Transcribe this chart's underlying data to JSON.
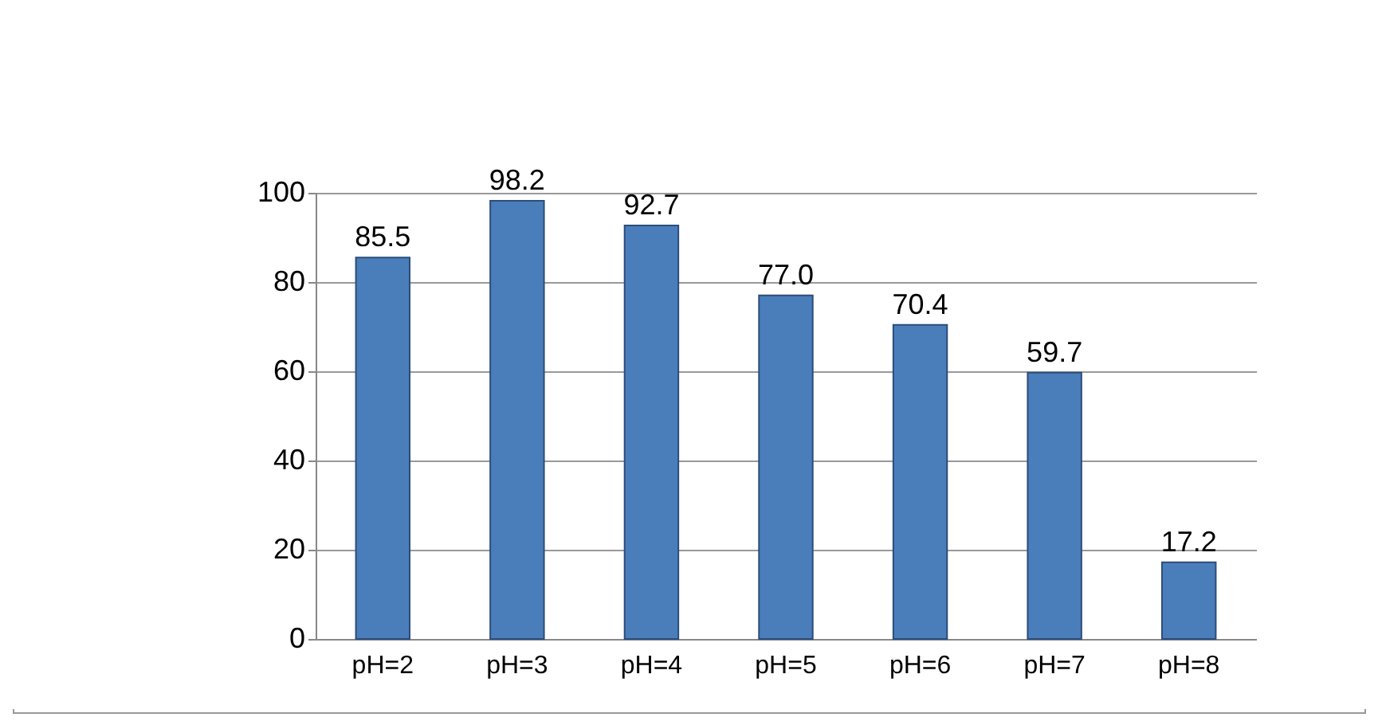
{
  "chart_data": {
    "type": "bar",
    "categories": [
      "pH=2",
      "pH=3",
      "pH=4",
      "pH=5",
      "pH=6",
      "pH=7",
      "pH=8"
    ],
    "values": [
      85.5,
      98.2,
      92.7,
      77.0,
      70.4,
      59.7,
      17.2
    ],
    "value_labels": [
      "85.5",
      "98.2",
      "92.7",
      "77.0",
      "70.4",
      "59.7",
      "17.2"
    ],
    "color": "#4a7ebb",
    "ylim": [
      0,
      100
    ],
    "yticks": [
      0,
      20,
      40,
      60,
      80,
      100
    ],
    "grid": "y"
  }
}
